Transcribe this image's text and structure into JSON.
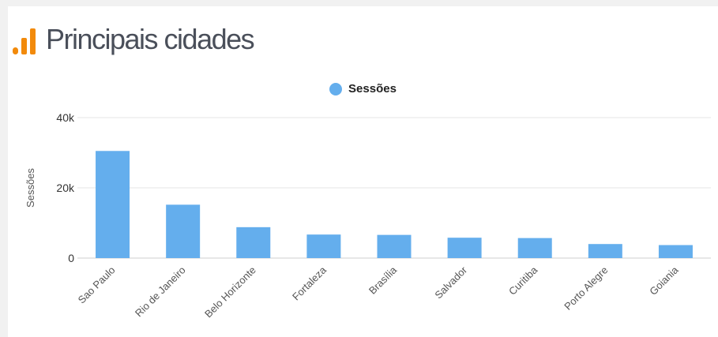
{
  "page": {
    "title": "Principais cidades"
  },
  "icons": {
    "logo": "bar-chart-logo-icon"
  },
  "colors": {
    "bar": "#64aeed",
    "logo": "#f28a0b",
    "title": "#4a4f5a"
  },
  "chart_data": {
    "type": "bar",
    "title": "",
    "ylabel": "Sessões",
    "xlabel": "",
    "ylim": [
      0,
      40000
    ],
    "yticks": [
      {
        "value": 0,
        "label": "0"
      },
      {
        "value": 20000,
        "label": "20k"
      },
      {
        "value": 40000,
        "label": "40k"
      }
    ],
    "grid": true,
    "legend_position": "top",
    "categories": [
      "Sao Paulo",
      "Rio de Janeiro",
      "Belo Horizonte",
      "Fortaleza",
      "Brasília",
      "Salvador",
      "Curitiba",
      "Porto Alegre",
      "Goiania"
    ],
    "series": [
      {
        "name": "Sessões",
        "values": [
          30500,
          15200,
          8800,
          6700,
          6600,
          5800,
          5700,
          4000,
          3700
        ]
      }
    ]
  }
}
